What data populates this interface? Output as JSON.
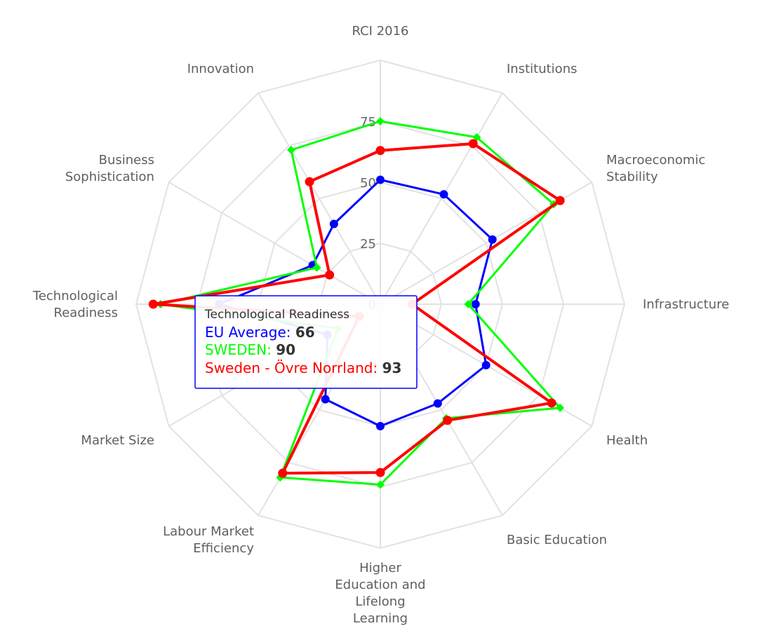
{
  "chart_data": {
    "type": "radar",
    "categories": [
      "RCI 2016",
      "Institutions",
      "Macroeconomic Stability",
      "Infrastructure",
      "Health",
      "Basic Education",
      "Higher Education and Lifelong Learning",
      "Labour Market Efficiency",
      "Market Size",
      "Technological Readiness",
      "Business Sophistication",
      "Innovation"
    ],
    "axis_labels_display": [
      [
        "RCI 2016"
      ],
      [
        "Institutions"
      ],
      [
        "Macroeconomic",
        "Stability"
      ],
      [
        "Infrastructure"
      ],
      [
        "Health"
      ],
      [
        "Basic Education"
      ],
      [
        "Higher",
        "Education and",
        "Lifelong",
        "Learning"
      ],
      [
        "Labour Market",
        "Efficiency"
      ],
      [
        "Market Size"
      ],
      [
        "Technological",
        "Readiness"
      ],
      [
        "Business",
        "Sophistication"
      ],
      [
        "Innovation"
      ]
    ],
    "radial_ticks": [
      0,
      25,
      50,
      75
    ],
    "rlim": [
      0,
      100
    ],
    "grid": true,
    "series": [
      {
        "name": "EU Average",
        "color": "#0000ff",
        "marker": "circle",
        "values": [
          51,
          52,
          53,
          39,
          50,
          47,
          50,
          45,
          25,
          66,
          32,
          38
        ]
      },
      {
        "name": "SWEDEN",
        "color": "#00ff00",
        "marker": "diamond",
        "values": [
          75,
          79,
          82,
          36,
          85,
          54,
          74,
          82,
          20,
          90,
          30,
          73
        ]
      },
      {
        "name": "Sweden - Övre Norrland",
        "color": "#ff0000",
        "marker": "circle",
        "values": [
          63,
          76,
          85,
          13,
          81,
          55,
          69,
          80,
          10,
          93,
          24,
          58
        ]
      }
    ]
  },
  "tooltip": {
    "title": "Technological Readiness",
    "rows": [
      {
        "label": "EU Average: ",
        "value": "66",
        "color": "#0000ff"
      },
      {
        "label": "SWEDEN: ",
        "value": "90",
        "color": "#00ff00"
      },
      {
        "label": "Sweden - Övre Norrland: ",
        "value": "93",
        "color": "#ff0000"
      }
    ]
  }
}
